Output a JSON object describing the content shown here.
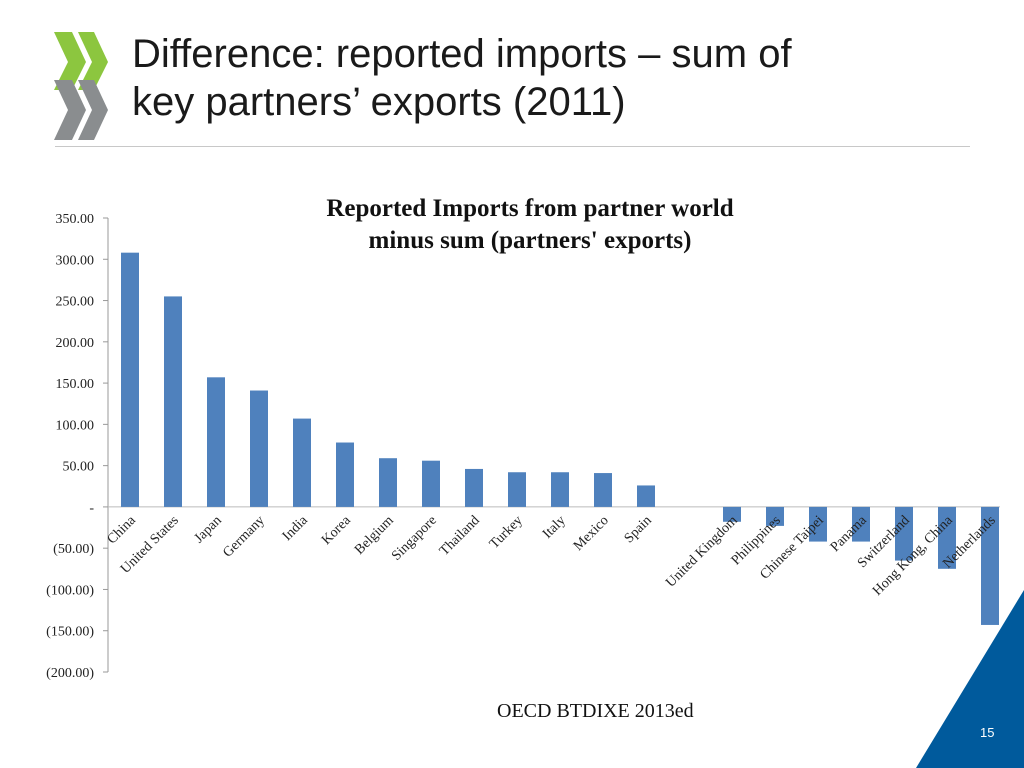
{
  "slide": {
    "title_line1": "Difference: reported imports – sum of",
    "title_line2": "key partners’ exports (2011)",
    "source": "OECD BTDIXE 2013ed",
    "page_number": "15",
    "logo_icon": "oecd-chevron-logo-icon",
    "colors": {
      "logo_green": "#8cc63f",
      "logo_gray": "#8a8d8f",
      "corner_blue": "#005a9c",
      "bar": "#4f81bd"
    }
  },
  "chart_data": {
    "type": "bar",
    "title_line1": "Reported Imports from partner world",
    "title_line2": "minus sum (partners' exports)",
    "xlabel": "",
    "ylabel": "",
    "ylim": [
      -200,
      350
    ],
    "yticks": [
      350,
      300,
      250,
      200,
      150,
      100,
      50,
      0,
      -50,
      -100,
      -150,
      -200
    ],
    "ytick_labels": [
      "350.00",
      "300.00",
      "250.00",
      "200.00",
      "150.00",
      "100.00",
      "50.00",
      "-",
      "(50.00)",
      "(100.00)",
      "(150.00)",
      "(200.00)"
    ],
    "grid": false,
    "legend": "none",
    "categories": [
      "China",
      "United States",
      "Japan",
      "Germany",
      "India",
      "Korea",
      "Belgium",
      "Singapore",
      "Thailand",
      "Turkey",
      "Italy",
      "Mexico",
      "Spain",
      "",
      "United Kingdom",
      "Philippines",
      "Chinese Taipei",
      "Panama",
      "Switzerland",
      "Hong Kong, China",
      "Netherlands"
    ],
    "values": [
      308,
      255,
      157,
      141,
      107,
      78,
      59,
      56,
      46,
      42,
      42,
      41,
      26,
      null,
      -18,
      -23,
      -42,
      -42,
      -65,
      -75,
      -143
    ]
  }
}
